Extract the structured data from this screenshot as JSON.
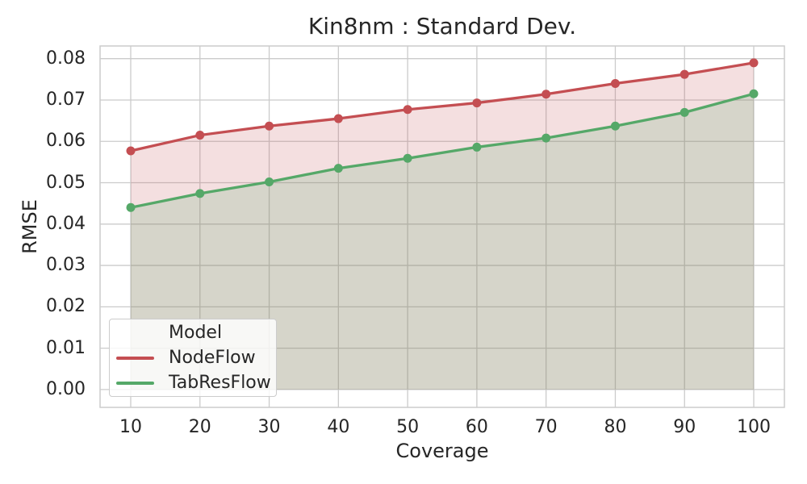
{
  "figure": {
    "title": "Kin8nm : Standard Dev.",
    "xlabel": "Coverage",
    "ylabel": "RMSE"
  },
  "legend": {
    "title": "Model",
    "entries": [
      {
        "label": "NodeFlow",
        "color": "#c44e52"
      },
      {
        "label": "TabResFlow",
        "color": "#55a868"
      }
    ]
  },
  "colors": {
    "grid": "#cbcbcb",
    "spine": "#cccccc",
    "text": "#262626",
    "nodeflow": "#c44e52",
    "tabresflow": "#55a868",
    "nodeflow_fill": "rgba(196,78,82,0.18)",
    "tabresflow_fill": "rgba(85,168,104,0.19)"
  },
  "chart_data": {
    "type": "line",
    "title": "Kin8nm : Standard Dev.",
    "xlabel": "Coverage",
    "ylabel": "RMSE",
    "grid": true,
    "legend_position": "lower left",
    "x": [
      10,
      20,
      30,
      40,
      50,
      60,
      70,
      80,
      90,
      100
    ],
    "series": [
      {
        "name": "NodeFlow",
        "color": "#c44e52",
        "fill": "rgba(196,78,82,0.18)",
        "fill_to_zero": true,
        "values": [
          0.0577,
          0.0615,
          0.0637,
          0.0655,
          0.0677,
          0.0693,
          0.0714,
          0.074,
          0.0762,
          0.079
        ]
      },
      {
        "name": "TabResFlow",
        "color": "#55a868",
        "fill": "rgba(85,168,104,0.19)",
        "fill_to_zero": true,
        "values": [
          0.044,
          0.0474,
          0.0502,
          0.0535,
          0.0559,
          0.0586,
          0.0608,
          0.0637,
          0.067,
          0.0715
        ]
      }
    ],
    "xticks": [
      10,
      20,
      30,
      40,
      50,
      60,
      70,
      80,
      90,
      100
    ],
    "xtick_labels": [
      "10",
      "20",
      "30",
      "40",
      "50",
      "60",
      "70",
      "80",
      "90",
      "100"
    ],
    "yticks": [
      0,
      0.01,
      0.02,
      0.03,
      0.04,
      0.05,
      0.06,
      0.07,
      0.08
    ],
    "ytick_labels": [
      "0.00",
      "0.01",
      "0.02",
      "0.03",
      "0.04",
      "0.05",
      "0.06",
      "0.07",
      "0.08"
    ],
    "xlim": [
      5.6,
      104.4
    ],
    "ylim": [
      -0.0043,
      0.0831
    ]
  }
}
